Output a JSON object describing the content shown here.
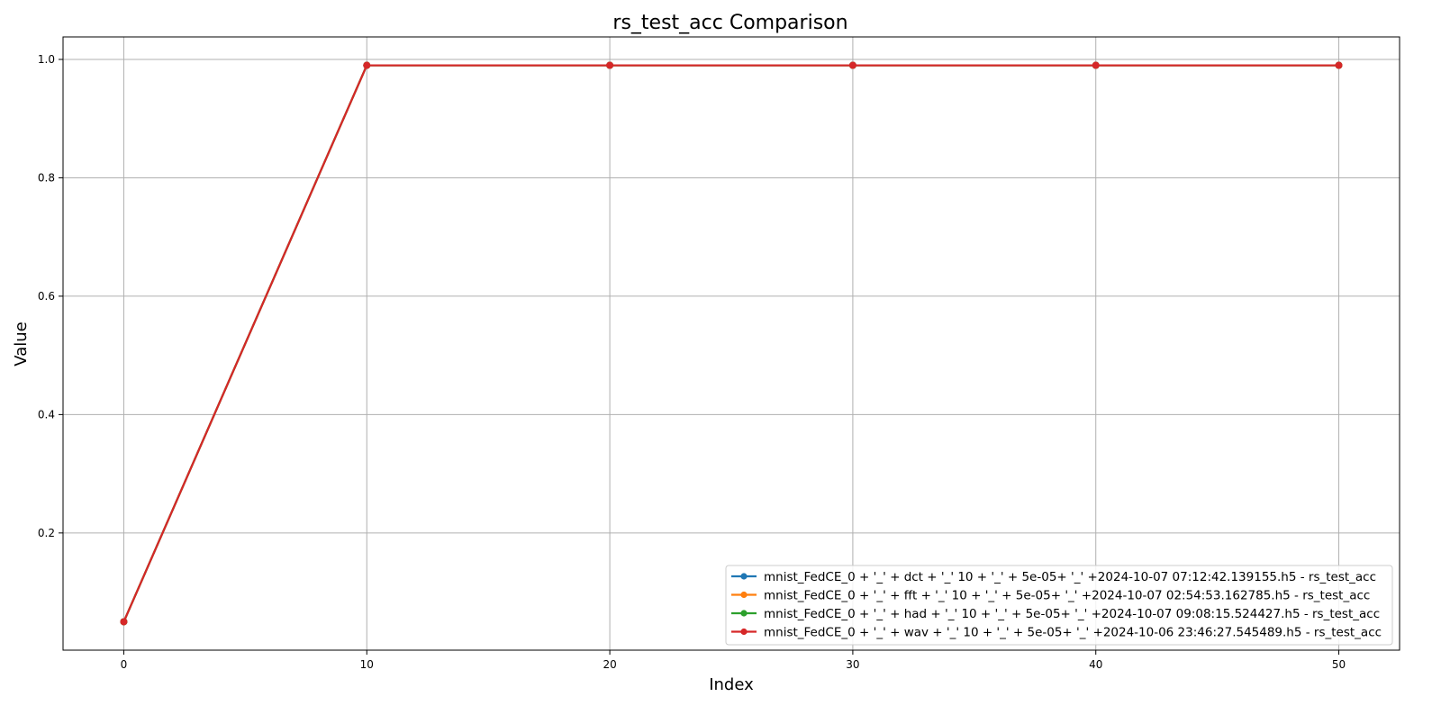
{
  "chart_data": {
    "type": "line",
    "title": "rs_test_acc Comparison",
    "xlabel": "Index",
    "ylabel": "Value",
    "xlim": [
      -2.5,
      52.5
    ],
    "ylim": [
      0.002,
      1.038
    ],
    "xticks": [
      0,
      10,
      20,
      30,
      40,
      50
    ],
    "yticks": [
      0.2,
      0.4,
      0.6,
      0.8,
      1.0
    ],
    "xtick_labels": [
      "0",
      "10",
      "20",
      "30",
      "40",
      "50"
    ],
    "ytick_labels": [
      "0.2",
      "0.4",
      "0.6",
      "0.8",
      "1.0"
    ],
    "grid": true,
    "legend_position": "lower right",
    "x": [
      0,
      10,
      20,
      30,
      40,
      50
    ],
    "series": [
      {
        "name": "mnist_FedCE_0 + '_' + dct + '_' 10 + '_' + 5e-05+ '_' +2024-10-07 07:12:42.139155.h5 - rs_test_acc",
        "color": "#1f77b4",
        "values": [
          0.05,
          0.99,
          0.99,
          0.99,
          0.99,
          0.99
        ]
      },
      {
        "name": "mnist_FedCE_0 + '_' + fft + '_' 10 + '_' + 5e-05+ '_' +2024-10-07 02:54:53.162785.h5 - rs_test_acc",
        "color": "#ff7f0e",
        "values": [
          0.05,
          0.99,
          0.99,
          0.99,
          0.99,
          0.99
        ]
      },
      {
        "name": "mnist_FedCE_0 + '_' + had + '_' 10 + '_' + 5e-05+ '_' +2024-10-07 09:08:15.524427.h5 - rs_test_acc",
        "color": "#2ca02c",
        "values": [
          0.05,
          0.99,
          0.99,
          0.99,
          0.99,
          0.99
        ]
      },
      {
        "name": "mnist_FedCE_0 + '_' + wav + '_' 10 + '_' + 5e-05+ '_' +2024-10-06 23:46:27.545489.h5 - rs_test_acc",
        "color": "#d62728",
        "values": [
          0.05,
          0.99,
          0.99,
          0.99,
          0.99,
          0.99
        ]
      }
    ]
  }
}
